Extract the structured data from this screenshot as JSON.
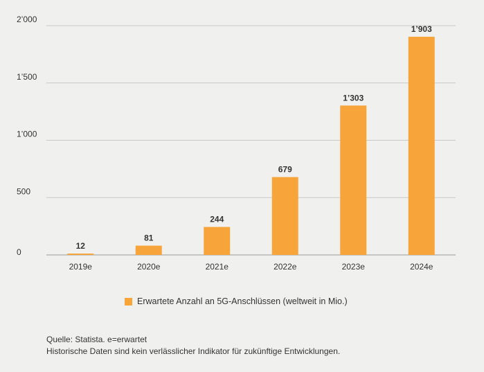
{
  "chart_data": {
    "type": "bar",
    "categories": [
      "2019e",
      "2020e",
      "2021e",
      "2022e",
      "2023e",
      "2024e"
    ],
    "values": [
      12,
      81,
      244,
      679,
      1303,
      1903
    ],
    "value_labels": [
      "12",
      "81",
      "244",
      "679",
      "1’303",
      "1’903"
    ],
    "title": "",
    "xlabel": "",
    "ylabel": "",
    "ylim": [
      0,
      2000
    ],
    "yticks": [
      0,
      500,
      1000,
      1500,
      2000
    ],
    "ytick_labels": [
      "0",
      "500",
      "1’000",
      "1’500",
      "2’000"
    ],
    "grid": true,
    "series_name": "Erwartete Anzahl an 5G-Anschlüssen (weltweit in Mio.)",
    "bar_color": "#f7a43b",
    "grid_color": "#c8c8c8",
    "axis_color": "#999999"
  },
  "legend": {
    "label": "Erwartete Anzahl an 5G-Anschlüssen (weltweit in Mio.)"
  },
  "footnote": {
    "source": "Quelle: Statista. e=erwartet",
    "disclaimer": "Historische Daten sind kein verlässlicher Indikator für zukünftige Entwicklungen."
  }
}
